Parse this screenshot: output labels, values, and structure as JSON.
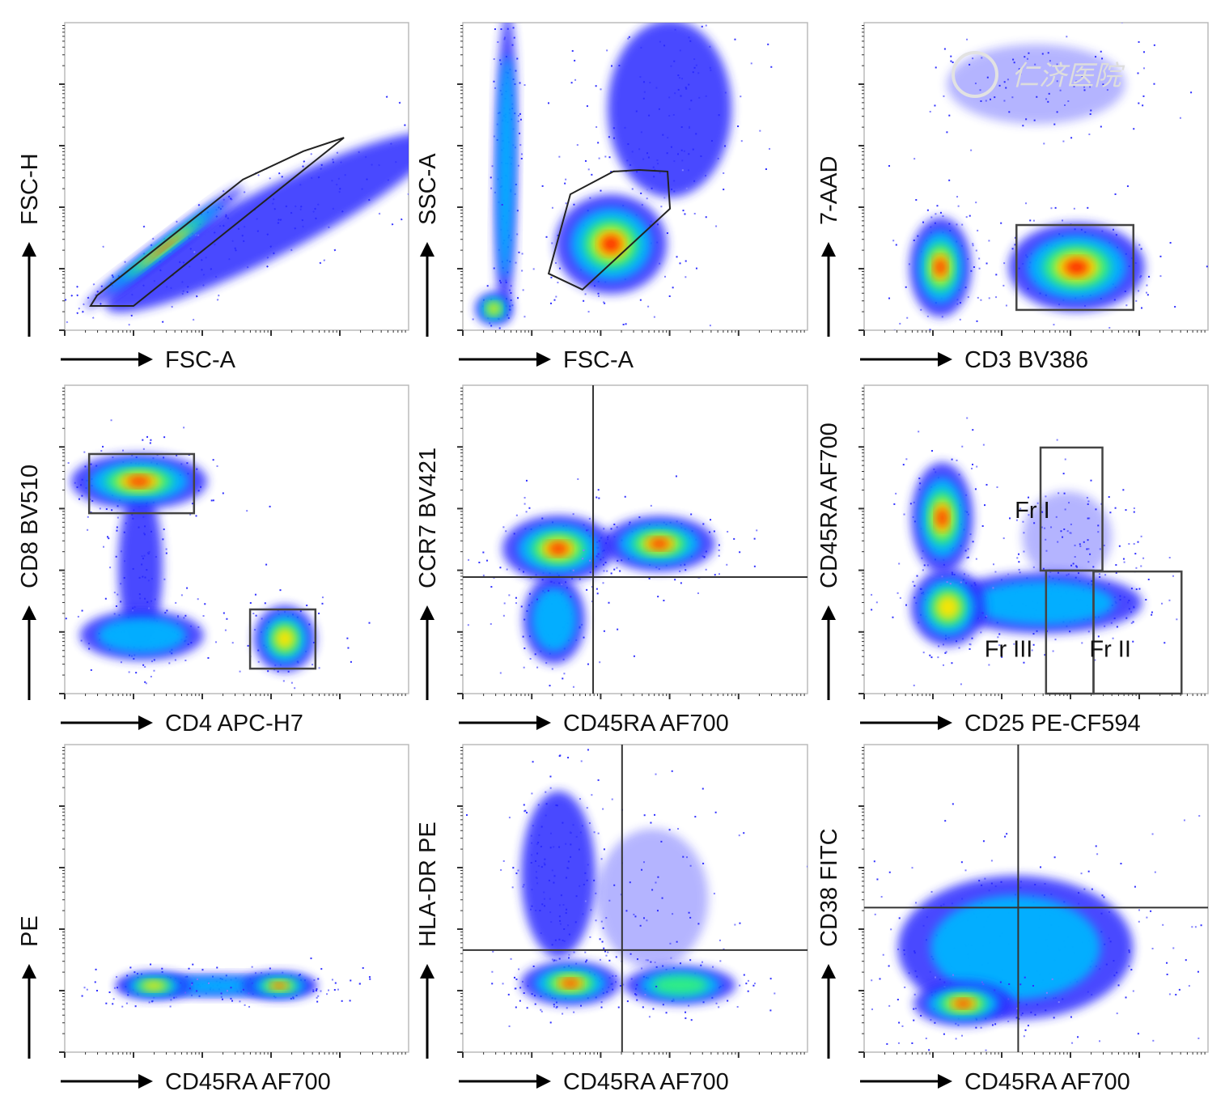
{
  "chart_data": [
    {
      "type": "scatter",
      "title": "",
      "xlabel": "FSC-A",
      "ylabel": "FSC-H",
      "xlim": [
        0,
        100
      ],
      "ylim": [
        0,
        100
      ],
      "grid": false,
      "populations": [
        {
          "from": [
            20,
            12
          ],
          "to": [
            100,
            58
          ],
          "w": 9,
          "peak": 0,
          "n": 160
        },
        {
          "from": [
            8,
            9
          ],
          "to": [
            50,
            45
          ],
          "w": 2.5,
          "peak": 4,
          "n": 80
        }
      ],
      "gates": [
        {
          "type": "polygon",
          "points": [
            [
              7.5,
              7.9
            ],
            [
              20,
              7.9
            ],
            [
              81.2,
              62.6
            ],
            [
              69.4,
              58.2
            ],
            [
              51.8,
              49
            ],
            [
              9.4,
              11.3
            ]
          ]
        }
      ],
      "quadrants": null,
      "gate_labels": []
    },
    {
      "type": "scatter",
      "title": "",
      "xlabel": "FSC-A",
      "ylabel": "SSC-A",
      "xlim": [
        0,
        100
      ],
      "ylim": [
        0,
        100
      ],
      "grid": false,
      "populations": [
        {
          "from": [
            12,
            6
          ],
          "to": [
            13,
            100
          ],
          "w": 3,
          "peak": 1,
          "n": 160
        },
        {
          "cx": 60,
          "cy": 72,
          "sx": 10,
          "sy": 16,
          "peak": 0,
          "n": 150
        },
        {
          "cx": 9,
          "cy": 7,
          "sx": 3,
          "sy": 3,
          "peak": 3,
          "n": 20
        },
        {
          "cx": 43,
          "cy": 28,
          "sx": 9,
          "sy": 9,
          "peak": 4,
          "n": 120
        }
      ],
      "gates": [
        {
          "type": "polygon",
          "points": [
            [
              24.9,
              18.4
            ],
            [
              34.7,
              13.2
            ],
            [
              60.1,
              39.5
            ],
            [
              59.4,
              51.6
            ],
            [
              51.2,
              52.1
            ],
            [
              43.7,
              51.6
            ],
            [
              31.2,
              44.2
            ]
          ]
        }
      ],
      "quadrants": null,
      "gate_labels": []
    },
    {
      "type": "scatter",
      "title": "",
      "xlabel": "CD3 BV386",
      "ylabel": "7-AAD",
      "xlim": [
        0,
        100
      ],
      "ylim": [
        0,
        100
      ],
      "grid": false,
      "populations": [
        {
          "cx": 50,
          "cy": 80,
          "sx": 16,
          "sy": 8,
          "peak": -1,
          "n": 90
        },
        {
          "cx": 22.2,
          "cy": 20.5,
          "sx": 5,
          "sy": 9,
          "peak": 4,
          "n": 90
        },
        {
          "cx": 61.8,
          "cy": 20.5,
          "sx": 11,
          "sy": 8,
          "peak": 4,
          "n": 120
        }
      ],
      "gates": [
        {
          "type": "rect",
          "x": [
            44.3,
            78.3
          ],
          "y": [
            6.6,
            34.2
          ]
        }
      ],
      "quadrants": null,
      "gate_labels": []
    },
    {
      "type": "scatter",
      "title": "",
      "xlabel": "CD4 APC-H7",
      "ylabel": "CD8 BV510",
      "xlim": [
        0,
        100
      ],
      "ylim": [
        0,
        100
      ],
      "grid": false,
      "populations": [
        {
          "from": [
            22,
            60
          ],
          "to": [
            22,
            22
          ],
          "w": 6,
          "peak": 0,
          "n": 100
        },
        {
          "cx": 22.4,
          "cy": 18.9,
          "sx": 10,
          "sy": 4.5,
          "peak": 1,
          "n": 100
        },
        {
          "cx": 64,
          "cy": 17.8,
          "sx": 5,
          "sy": 6,
          "peak": 3,
          "n": 70
        },
        {
          "cx": 21.6,
          "cy": 68.8,
          "sx": 11,
          "sy": 5,
          "peak": 4,
          "n": 110
        }
      ],
      "gates": [
        {
          "type": "rect",
          "x": [
            7.1,
            37.6
          ],
          "y": [
            58.5,
            77.7
          ]
        },
        {
          "type": "rect",
          "x": [
            53.9,
            72.9
          ],
          "y": [
            8.1,
            27.3
          ]
        }
      ],
      "quadrants": null,
      "gate_labels": []
    },
    {
      "type": "scatter",
      "title": "",
      "xlabel": "CD45RA  AF700",
      "ylabel": "CCR7 BV421",
      "xlim": [
        0,
        100
      ],
      "ylim": [
        0,
        100
      ],
      "grid": false,
      "populations": [
        {
          "cx": 26.5,
          "cy": 24,
          "sx": 5,
          "sy": 8,
          "peak": 1,
          "n": 90
        },
        {
          "cx": 27.7,
          "cy": 47,
          "sx": 9,
          "sy": 6,
          "peak": 4,
          "n": 110
        },
        {
          "cx": 57,
          "cy": 48.6,
          "sx": 9,
          "sy": 5,
          "peak": 4,
          "n": 110
        }
      ],
      "gates": [],
      "quadrants": {
        "x": 37.8,
        "y": 37.8
      },
      "gate_labels": []
    },
    {
      "type": "scatter",
      "title": "",
      "xlabel": "CD25 PE-CF594",
      "ylabel": "CD45RA  AF700",
      "xlim": [
        0,
        100
      ],
      "ylim": [
        0,
        100
      ],
      "grid": false,
      "populations": [
        {
          "cx": 59,
          "cy": 51,
          "sx": 8,
          "sy": 9,
          "peak": -1,
          "n": 120
        },
        {
          "cx": 52,
          "cy": 29.4,
          "sx": 16,
          "sy": 5.5,
          "peak": 1,
          "n": 140
        },
        {
          "cx": 24.4,
          "cy": 28,
          "sx": 6,
          "sy": 7,
          "peak": 3,
          "n": 90
        },
        {
          "cx": 22.7,
          "cy": 57,
          "sx": 5,
          "sy": 10,
          "peak": 4,
          "n": 90
        }
      ],
      "gates": [
        {
          "type": "rect",
          "x": [
            51.3,
            69.3
          ],
          "y": [
            39.9,
            79.8
          ]
        },
        {
          "type": "rect",
          "x": [
            52.9,
            66.7
          ],
          "y": [
            0,
            39.9
          ]
        },
        {
          "type": "rect",
          "x": [
            66.7,
            92.3
          ],
          "y": [
            0,
            39.6
          ]
        }
      ],
      "quadrants": null,
      "gate_labels": [
        {
          "text": "Fr I",
          "x": 43.8,
          "y": 57
        },
        {
          "text": "Fr III",
          "x": 35,
          "y": 12
        },
        {
          "text": "Fr II",
          "x": 65.5,
          "y": 12
        }
      ]
    },
    {
      "type": "scatter",
      "title": "",
      "xlabel": "CD45RA  AF700",
      "ylabel": "PE",
      "xlim": [
        0,
        100
      ],
      "ylim": [
        0,
        100
      ],
      "grid": false,
      "populations": [
        {
          "from": [
            18,
            21.6
          ],
          "to": [
            70,
            21.6
          ],
          "w": 3,
          "peak": 1,
          "n": 120
        },
        {
          "cx": 25.9,
          "cy": 21.6,
          "sx": 6,
          "sy": 2.5,
          "peak": 3,
          "n": 40
        },
        {
          "cx": 62.4,
          "cy": 21.6,
          "sx": 6,
          "sy": 2.5,
          "peak": 4,
          "n": 40
        }
      ],
      "gates": [],
      "quadrants": null,
      "gate_labels": []
    },
    {
      "type": "scatter",
      "title": "",
      "xlabel": "CD45RA  AF700",
      "ylabel": "HLA-DR PE",
      "xlim": [
        0,
        100
      ],
      "ylim": [
        0,
        100
      ],
      "grid": false,
      "populations": [
        {
          "cx": 27.7,
          "cy": 57.9,
          "sx": 6,
          "sy": 15,
          "peak": 0,
          "n": 150
        },
        {
          "cx": 55,
          "cy": 50,
          "sx": 10,
          "sy": 14,
          "peak": -1,
          "n": 60
        },
        {
          "cx": 63,
          "cy": 21.8,
          "sx": 9,
          "sy": 3.5,
          "peak": 2,
          "n": 80
        },
        {
          "cx": 31.2,
          "cy": 22.4,
          "sx": 8,
          "sy": 4,
          "peak": 4,
          "n": 90
        }
      ],
      "gates": [],
      "quadrants": {
        "x": 46.2,
        "y": 33.2
      },
      "gate_labels": []
    },
    {
      "type": "scatter",
      "title": "",
      "xlabel": "CD45RA  AF700",
      "ylabel": "CD38 FITC",
      "xlim": [
        0,
        100
      ],
      "ylim": [
        0,
        100
      ],
      "grid": false,
      "populations": [
        {
          "cx": 44,
          "cy": 34,
          "sx": 19,
          "sy": 13,
          "peak": 1,
          "n": 260
        },
        {
          "cx": 28.8,
          "cy": 15.8,
          "sx": 8,
          "sy": 4,
          "peak": 4,
          "n": 70
        }
      ],
      "gates": [],
      "quadrants": {
        "x": 44.8,
        "y": 47
      },
      "gate_labels": []
    }
  ],
  "watermark": "仁济医院",
  "colors": {
    "levels": [
      "#2a2aff",
      "#00b4ff",
      "#30f080",
      "#ffe400",
      "#ff2400"
    ],
    "gate": "#444444",
    "axis": "#333333"
  }
}
